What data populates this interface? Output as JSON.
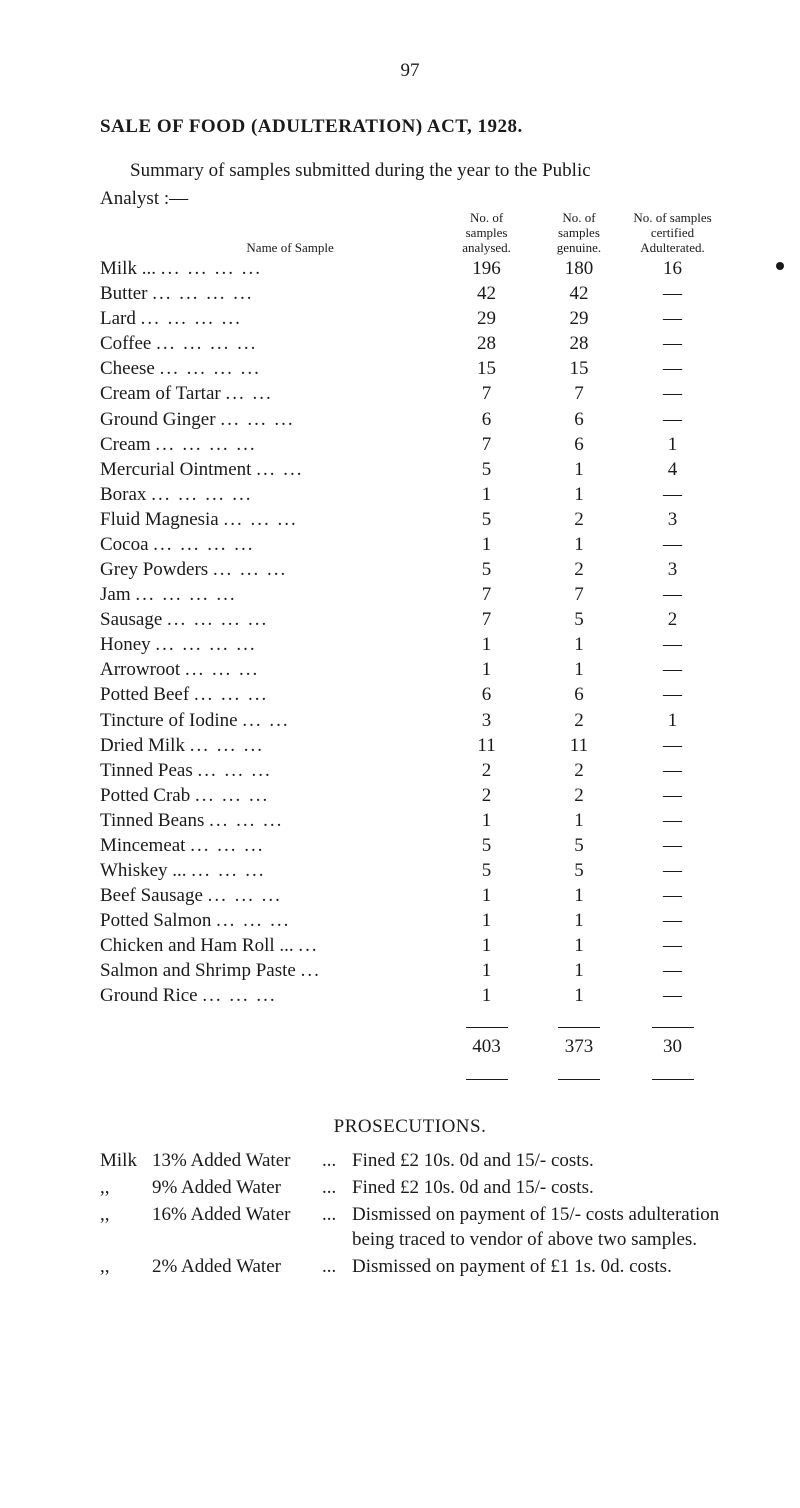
{
  "pageNumber": "97",
  "titleLine": "SALE  OF  FOOD  (ADULTERATION)  ACT,  1928.",
  "introLine1": "Summary of samples submitted during the year to the Public",
  "introLine2": "Analyst :—",
  "headers": {
    "name": "Name of Sample",
    "c1a": "No. of",
    "c1b": "samples",
    "c1c": "analysed.",
    "c2a": "No. of",
    "c2b": "samples",
    "c2c": "genuine.",
    "c3a": "No. of samples",
    "c3b": "certified",
    "c3c": "Adulterated."
  },
  "rows": [
    {
      "name": "Milk ...",
      "d": "...      ...      ...      ...",
      "a": "196",
      "g": "180",
      "x": "16"
    },
    {
      "name": "Butter",
      "d": "...      ...      ...      ...",
      "a": "42",
      "g": "42",
      "x": "—"
    },
    {
      "name": "Lard",
      "d": "...      ...      ...      ...",
      "a": "29",
      "g": "29",
      "x": "—"
    },
    {
      "name": "Coffee",
      "d": "...      ...      ...      ...",
      "a": "28",
      "g": "28",
      "x": "—"
    },
    {
      "name": "Cheese",
      "d": "...      ...      ...      ...",
      "a": "15",
      "g": "15",
      "x": "—"
    },
    {
      "name": "Cream of Tartar",
      "d": "...      ...",
      "a": "7",
      "g": "7",
      "x": "—"
    },
    {
      "name": "Ground Ginger",
      "d": "...      ...      ...",
      "a": "6",
      "g": "6",
      "x": "—"
    },
    {
      "name": "Cream",
      "d": "...      ...      ...      ...",
      "a": "7",
      "g": "6",
      "x": "1"
    },
    {
      "name": "Mercurial Ointment",
      "d": "...      ...",
      "a": "5",
      "g": "1",
      "x": "4"
    },
    {
      "name": "Borax",
      "d": "...      ...      ...      ...",
      "a": "1",
      "g": "1",
      "x": "—"
    },
    {
      "name": "Fluid Magnesia",
      "d": "...      ...      ...",
      "a": "5",
      "g": "2",
      "x": "3"
    },
    {
      "name": "Cocoa",
      "d": "...      ...      ...      ...",
      "a": "1",
      "g": "1",
      "x": "—"
    },
    {
      "name": "Grey Powders",
      "d": "...      ...      ...",
      "a": "5",
      "g": "2",
      "x": "3"
    },
    {
      "name": "Jam",
      "d": "...      ...      ...      ...",
      "a": "7",
      "g": "7",
      "x": "—"
    },
    {
      "name": "Sausage",
      "d": "...      ...      ...      ...",
      "a": "7",
      "g": "5",
      "x": "2"
    },
    {
      "name": "Honey",
      "d": "...      ...      ...      ...",
      "a": "1",
      "g": "1",
      "x": "—"
    },
    {
      "name": "Arrowroot",
      "d": "...      ...      ...",
      "a": "1",
      "g": "1",
      "x": "—"
    },
    {
      "name": "Potted Beef",
      "d": "...      ...      ...",
      "a": "6",
      "g": "6",
      "x": "—"
    },
    {
      "name": "Tincture of Iodine",
      "d": "...      ...",
      "a": "3",
      "g": "2",
      "x": "1"
    },
    {
      "name": "Dried Milk",
      "d": "...      ...      ...",
      "a": "11",
      "g": "11",
      "x": "—"
    },
    {
      "name": "Tinned Peas",
      "d": "...      ...      ...",
      "a": "2",
      "g": "2",
      "x": "—"
    },
    {
      "name": "Potted Crab",
      "d": "...      ...      ...",
      "a": "2",
      "g": "2",
      "x": "—"
    },
    {
      "name": "Tinned Beans",
      "d": "...      ...      ...",
      "a": "1",
      "g": "1",
      "x": "—"
    },
    {
      "name": "Mincemeat",
      "d": "...      ...      ...",
      "a": "5",
      "g": "5",
      "x": "—"
    },
    {
      "name": "Whiskey ...",
      "d": "...      ...      ...",
      "a": "5",
      "g": "5",
      "x": "—"
    },
    {
      "name": "Beef Sausage",
      "d": "...      ...      ...",
      "a": "1",
      "g": "1",
      "x": "—"
    },
    {
      "name": "Potted Salmon",
      "d": "...      ...      ...",
      "a": "1",
      "g": "1",
      "x": "—"
    },
    {
      "name": "Chicken and Ham Roll ...",
      "d": "...",
      "a": "1",
      "g": "1",
      "x": "—"
    },
    {
      "name": "Salmon and Shrimp Paste",
      "d": "...",
      "a": "1",
      "g": "1",
      "x": "—"
    },
    {
      "name": "Ground Rice",
      "d": "...      ...      ...",
      "a": "1",
      "g": "1",
      "x": "—"
    }
  ],
  "totals": {
    "a": "403",
    "g": "373",
    "x": "30"
  },
  "prosTitle": "PROSECUTIONS.",
  "pros": [
    {
      "c1": "Milk",
      "c2": "13% Added Water",
      "c3": "...",
      "c4": "Fined £2 10s. 0d and 15/- costs."
    },
    {
      "c1": ",,",
      "c2": "9% Added Water",
      "c3": "...",
      "c4": "Fined £2 10s. 0d and 15/- costs."
    },
    {
      "c1": ",,",
      "c2": "16% Added Water",
      "c3": "...",
      "c4": "Dismissed on payment of 15/- costs adulteration being traced to ven­dor of above two samples."
    },
    {
      "c1": ",,",
      "c2": "2% Added Water",
      "c3": "...",
      "c4": "Dismissed on payment of £1 1s. 0d. costs."
    }
  ]
}
